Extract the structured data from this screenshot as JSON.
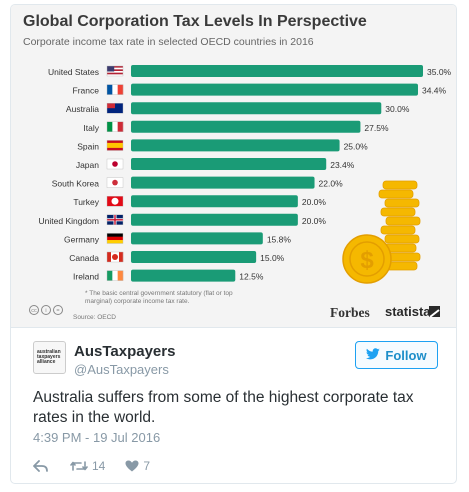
{
  "infographic": {
    "title": "Global Corporation Tax Levels In Perspective",
    "subtitle": "Corporate income tax rate in selected OECD countries in 2016",
    "note": "* The basic central government statutory (flat or top marginal) corporate income tax rate.",
    "source": "Source: OECD",
    "logo_forbes": "Forbes",
    "logo_statista": "statista",
    "cc_icons": [
      "cc",
      "i",
      "="
    ]
  },
  "chart_data": {
    "type": "bar",
    "orientation": "horizontal",
    "title": "Global Corporation Tax Levels In Perspective",
    "subtitle": "Corporate income tax rate in selected OECD countries in 2016",
    "categories": [
      "United States",
      "France",
      "Australia",
      "Italy",
      "Spain",
      "Japan",
      "South Korea",
      "Turkey",
      "United Kingdom",
      "Germany",
      "Canada",
      "Ireland"
    ],
    "values": [
      35.0,
      34.4,
      30.0,
      27.5,
      25.0,
      23.4,
      22.0,
      20.0,
      20.0,
      15.8,
      15.0,
      12.5
    ],
    "value_labels": [
      "35.0%",
      "34.4%",
      "30.0%",
      "27.5%",
      "25.0%",
      "23.4%",
      "22.0%",
      "20.0%",
      "20.0%",
      "15.8%",
      "15.0%",
      "12.5%"
    ],
    "xlim": [
      0,
      35
    ],
    "grid": false,
    "bar_color": "#1a9b76"
  },
  "tweet": {
    "display_name": "AusTaxpayers",
    "handle": "@AusTaxpayers",
    "avatar_text": "australian taxpayers alliance",
    "follow_label": "Follow",
    "text": "Australia suffers from some of the highest corporate tax rates in the world.",
    "timestamp": "4:39 PM - 19 Jul 2016",
    "retweets": "14",
    "likes": "7"
  },
  "colors": {
    "accent": "#1da1f2",
    "bar": "#1a9b76",
    "coin": "#f5b800"
  },
  "icons": {
    "follow": "twitter-bird-icon",
    "reply": "reply-icon",
    "retweet": "retweet-icon",
    "like": "heart-icon"
  }
}
